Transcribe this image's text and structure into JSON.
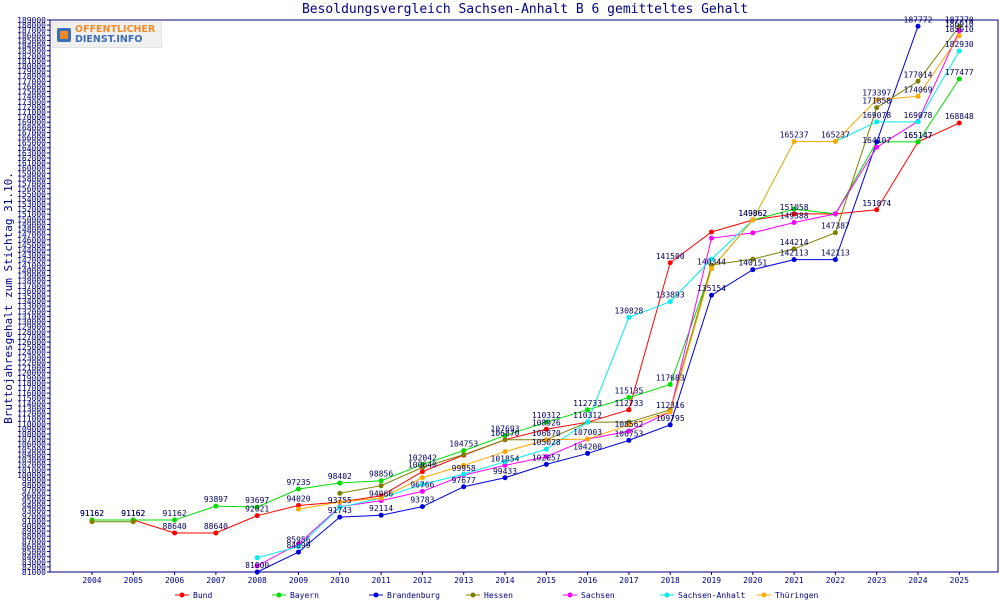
{
  "logo": {
    "line1": "OFFENTLICHER",
    "line2": "DIENST.INFO"
  },
  "chart_data": {
    "type": "line",
    "title": "Besoldungsvergleich Sachsen-Anhalt B 6 gemitteltes Gehalt",
    "xlabel": "",
    "ylabel": "Bruttojahresgehalt zum Stichtag 31.10.",
    "x": [
      "2004",
      "2005",
      "2006",
      "2007",
      "2008",
      "2009",
      "2010",
      "2011",
      "2012",
      "2013",
      "2014",
      "2015",
      "2016",
      "2017",
      "2018",
      "2019",
      "2020",
      "2021",
      "2022",
      "2023",
      "2024",
      "2025"
    ],
    "ylim": [
      81000,
      189000
    ],
    "ytick_step": 1000,
    "grid": false,
    "legend_position": "bottom",
    "series": [
      {
        "name": "Bund",
        "color": "#ff0000",
        "values": [
          91162,
          91162,
          88640,
          88640,
          92021,
          94020,
          94687,
          95887,
          100640,
          103854,
          106870,
          108926,
          110312,
          112733,
          141500,
          147527,
          149862,
          151058,
          151058,
          151874,
          165147,
          168848
        ],
        "labels": [
          "91162",
          "91162",
          "88640",
          "88640",
          "92021",
          "94020",
          "",
          "",
          "100640",
          "",
          "106870",
          "108926",
          "110312",
          "112733",
          "141500",
          "",
          "149862",
          "151058",
          "",
          "151874",
          "165147",
          "168848"
        ]
      },
      {
        "name": "Bayern",
        "color": "#00dd00",
        "values": [
          91162,
          91162,
          91162,
          93897,
          93697,
          97235,
          98402,
          98856,
          102042,
          104753,
          107693,
          110312,
          112733,
          115135,
          117683,
          140344,
          149862,
          152005,
          151058,
          165147,
          165147,
          177477
        ],
        "labels": [
          "91162",
          "91162",
          "91162",
          "93897",
          "93697",
          "97235",
          "98402",
          "98856",
          "102042",
          "104753",
          "107693",
          "110312",
          "112733",
          "115135",
          "117683",
          "140344",
          "149862",
          "",
          "",
          "",
          "165147",
          "177477"
        ]
      },
      {
        "name": "Brandenburg",
        "color": "#0000dd",
        "values": [
          null,
          null,
          null,
          null,
          81000,
          84899,
          91743,
          92114,
          93783,
          97677,
          99433,
          102057,
          104200,
          106753,
          109795,
          135154,
          140151,
          142113,
          142113,
          165147,
          187772,
          null
        ],
        "labels": [
          "",
          "",
          "",
          "",
          "81000",
          "84899",
          "91743",
          "92114",
          "93783",
          "97677",
          "99433",
          "102057",
          "104200",
          "106753",
          "109795",
          "135154",
          "140151",
          "142113",
          "142113",
          "",
          "187772",
          ""
        ]
      },
      {
        "name": "Hessen",
        "color": "#808000",
        "values": [
          90842,
          90842,
          null,
          null,
          null,
          null,
          96402,
          97887,
          101442,
          103958,
          106870,
          106870,
          110312,
          110312,
          112733,
          141052,
          142214,
          144214,
          147387,
          171858,
          177014,
          187770
        ],
        "labels": [
          "",
          "",
          "",
          "",
          "",
          "",
          "",
          "",
          "",
          "",
          "",
          "106870",
          "",
          "",
          "",
          "",
          "",
          "144214",
          "147387",
          "171858",
          "177014",
          "187770"
        ]
      },
      {
        "name": "Sachsen",
        "color": "#ff00ff",
        "values": [
          null,
          null,
          null,
          null,
          82200,
          86500,
          93755,
          94966,
          96766,
          99958,
          101854,
          103545,
          107003,
          108562,
          112316,
          146320,
          147349,
          149388,
          151058,
          164107,
          169173,
          186910
        ],
        "labels": [
          "",
          "",
          "",
          "",
          "",
          "",
          "93755",
          "94966",
          "96766",
          "99958",
          "101854",
          "",
          "107003",
          "108562",
          "112316",
          "",
          "",
          "149388",
          "",
          "164107",
          "",
          "186910"
        ]
      },
      {
        "name": "Sachsen-Anhalt",
        "color": "#00eeee",
        "values": [
          null,
          null,
          null,
          null,
          83800,
          85956,
          93656,
          95446,
          98127,
          100156,
          102579,
          105028,
          110312,
          130828,
          133893,
          142214,
          149862,
          165237,
          165237,
          169078,
          169078,
          182930
        ],
        "labels": [
          "",
          "",
          "",
          "",
          "",
          "85956",
          "",
          "",
          "",
          "",
          "",
          "105028",
          "",
          "130828",
          "133893",
          "",
          "",
          "",
          "165237",
          "169078",
          "169078",
          "182930"
        ]
      },
      {
        "name": "Thüringen",
        "color": "#ffaa00",
        "values": [
          null,
          null,
          null,
          null,
          null,
          93300,
          94687,
          95446,
          99462,
          101854,
          104543,
          106870,
          107003,
          109795,
          112316,
          140344,
          149862,
          165237,
          165237,
          173397,
          174069,
          185910
        ],
        "labels": [
          "",
          "",
          "",
          "",
          "",
          "",
          "",
          "",
          "",
          "",
          "",
          "",
          "",
          "",
          "",
          "",
          "",
          "165237",
          "",
          "173397",
          "174069",
          "185910"
        ]
      }
    ]
  }
}
